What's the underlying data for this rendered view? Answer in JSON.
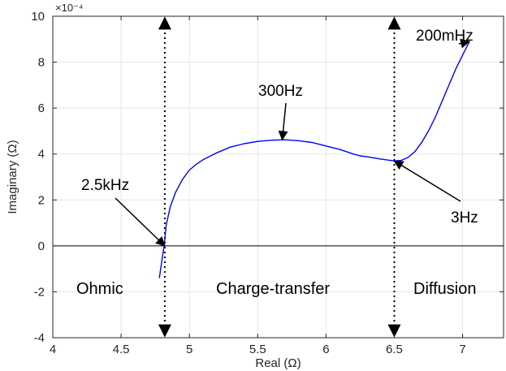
{
  "chart_data": {
    "type": "line",
    "title": "",
    "xlabel": "Real (Ω)",
    "ylabel": "Imaginary (Ω)",
    "xlim": [
      4,
      7.3
    ],
    "ylim": [
      -4,
      10
    ],
    "y_multiplier_label": "×10⁻⁴",
    "x_ticks": [
      "4",
      "4.5",
      "5",
      "5.5",
      "6",
      "6.5",
      "7"
    ],
    "y_ticks": [
      "-4",
      "-2",
      "0",
      "2",
      "4",
      "6",
      "8",
      "10"
    ],
    "x_tick_values": [
      4,
      4.5,
      5,
      5.5,
      6,
      6.5,
      7
    ],
    "y_tick_values": [
      -4,
      -2,
      0,
      2,
      4,
      6,
      8,
      10
    ],
    "grid": true,
    "line_color": "#0000ff",
    "series": [
      {
        "x": [
          4.78,
          4.8,
          4.815,
          4.83,
          4.86,
          4.9,
          4.95,
          5.0,
          5.05,
          5.1,
          5.15,
          5.2,
          5.3,
          5.4,
          5.5,
          5.6,
          5.7,
          5.8,
          5.9,
          6.0,
          6.1,
          6.2,
          6.25,
          6.3,
          6.4,
          6.5,
          6.55,
          6.6,
          6.65,
          6.7,
          6.75,
          6.8,
          6.85,
          6.9,
          6.95,
          7.0,
          7.05
        ],
        "y": [
          -1.4,
          -0.6,
          0.0,
          0.9,
          1.7,
          2.35,
          2.9,
          3.3,
          3.55,
          3.75,
          3.9,
          4.05,
          4.3,
          4.45,
          4.55,
          4.6,
          4.62,
          4.58,
          4.5,
          4.35,
          4.2,
          4.0,
          3.92,
          3.88,
          3.78,
          3.7,
          3.72,
          3.85,
          4.1,
          4.5,
          5.0,
          5.6,
          6.3,
          7.0,
          7.7,
          8.3,
          8.9
        ]
      }
    ],
    "reference_lines": {
      "horizontal_y": 0,
      "vertical_dotted_x": [
        4.82,
        6.5
      ]
    },
    "annotations": [
      {
        "text": "2.5kHz",
        "point": [
          4.82,
          0
        ]
      },
      {
        "text": "300Hz",
        "point": [
          5.68,
          4.62
        ]
      },
      {
        "text": "3Hz",
        "point": [
          6.5,
          3.7
        ]
      },
      {
        "text": "200mHz",
        "point": [
          7.05,
          8.9
        ]
      }
    ],
    "regions": [
      "Ohmic",
      "Charge-transfer",
      "Diffusion"
    ]
  }
}
